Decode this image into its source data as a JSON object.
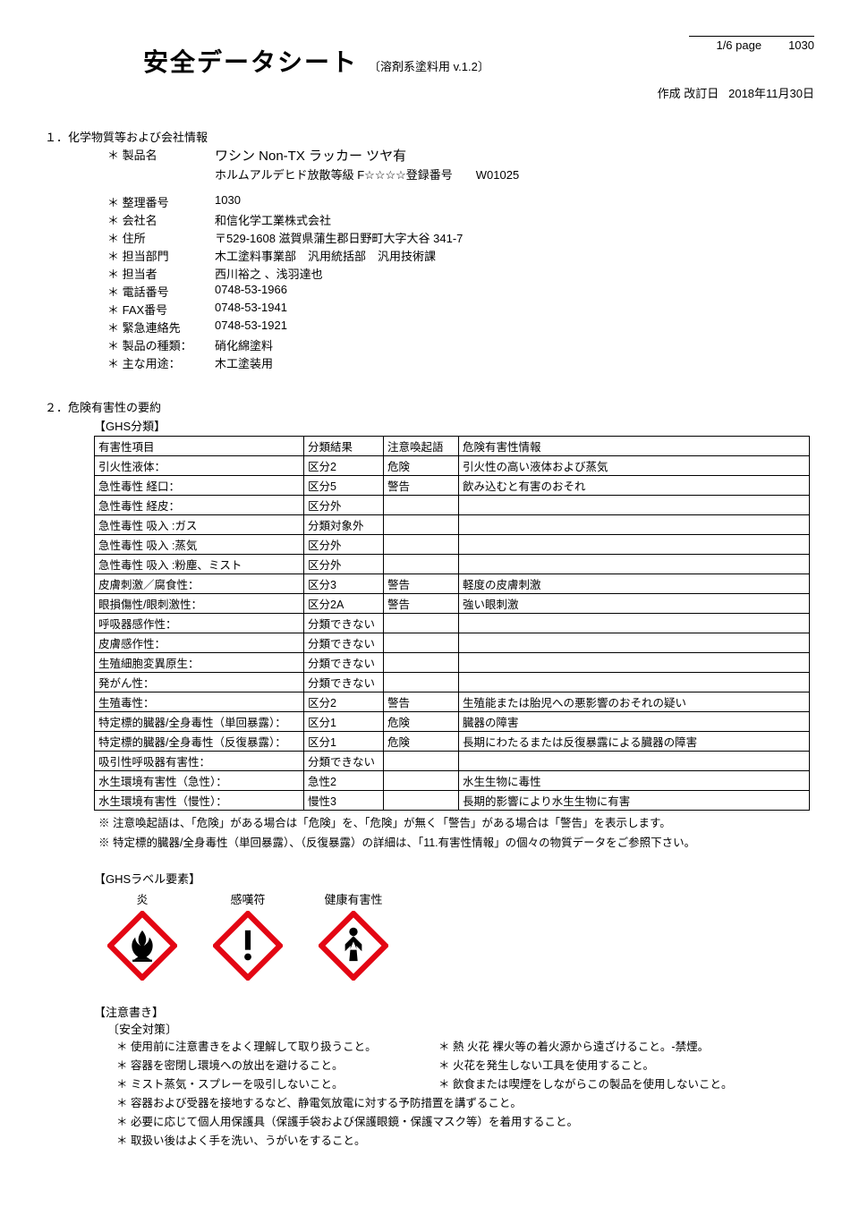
{
  "header": {
    "page": "1/6 page",
    "docnum": "1030",
    "title": "安全データシート",
    "subtitle": "〔溶剤系塗料用 v.1.2〕",
    "date_label": "作成 改訂日",
    "date": "2018年11月30日"
  },
  "section1": {
    "heading": "１．化学物質等および会社情報",
    "rows": [
      {
        "label": "＊ 製品名",
        "value": "ワシン Non-TX ラッカー ツヤ有"
      },
      {
        "label": "",
        "value": "ホルムアルデヒド放散等級 F☆☆☆☆登録番号　　W01025"
      },
      {
        "label": "＊ 整理番号",
        "value": "1030"
      },
      {
        "label": "＊ 会社名",
        "value": "和信化学工業株式会社"
      },
      {
        "label": "＊ 住所",
        "value": "〒529-1608 滋賀県蒲生郡日野町大字大谷 341-7"
      },
      {
        "label": "＊ 担当部門",
        "value": "木工塗料事業部　汎用統括部　汎用技術課"
      },
      {
        "label": "＊ 担当者",
        "value": "西川裕之 、浅羽達也"
      },
      {
        "label": "＊ 電話番号",
        "value": "0748-53-1966"
      },
      {
        "label": "＊ FAX番号",
        "value": "0748-53-1941"
      },
      {
        "label": "＊ 緊急連絡先",
        "value": "0748-53-1921"
      },
      {
        "label": "＊ 製品の種類：",
        "value": "硝化綿塗料"
      },
      {
        "label": "＊ 主な用途：",
        "value": "木工塗装用"
      }
    ]
  },
  "section2": {
    "heading": "２．危険有害性の要約",
    "ghs_heading": "【GHS分類】",
    "table_headers": [
      "有害性項目",
      "分類結果",
      "注意喚起語",
      "危険有害性情報"
    ],
    "rows": [
      [
        "引火性液体：",
        "区分2",
        "危険",
        "引火性の高い液体および蒸気"
      ],
      [
        "急性毒性 経口：",
        "区分5",
        "警告",
        "飲み込むと有害のおそれ"
      ],
      [
        "急性毒性 経皮：",
        "区分外",
        "",
        ""
      ],
      [
        "急性毒性 吸入 :ガス",
        "分類対象外",
        "",
        ""
      ],
      [
        "急性毒性 吸入 :蒸気",
        "区分外",
        "",
        ""
      ],
      [
        "急性毒性 吸入 :粉塵、ミスト",
        "区分外",
        "",
        ""
      ],
      [
        "皮膚刺激／腐食性：",
        "区分3",
        "警告",
        "軽度の皮膚刺激"
      ],
      [
        "眼損傷性/眼刺激性：",
        "区分2A",
        "警告",
        "強い眼刺激"
      ],
      [
        "呼吸器感作性：",
        "分類できない",
        "",
        ""
      ],
      [
        "皮膚感作性：",
        "分類できない",
        "",
        ""
      ],
      [
        "生殖細胞変異原生：",
        "分類できない",
        "",
        ""
      ],
      [
        "発がん性：",
        "分類できない",
        "",
        ""
      ],
      [
        "生殖毒性：",
        "区分2",
        "警告",
        "生殖能または胎児への悪影響のおそれの疑い"
      ],
      [
        "特定標的臓器/全身毒性（単回暴露）：",
        "区分1",
        "危険",
        "臓器の障害"
      ],
      [
        "特定標的臓器/全身毒性（反復暴露）：",
        "区分1",
        "危険",
        "長期にわたるまたは反復暴露による臓器の障害"
      ],
      [
        "吸引性呼吸器有害性：",
        "分類できない",
        "",
        ""
      ],
      [
        "水生環境有害性（急性）：",
        "急性2",
        "",
        "水生生物に毒性"
      ],
      [
        "水生環境有害性（慢性）：",
        "慢性3",
        "",
        "長期的影響により水生生物に有害"
      ]
    ],
    "notes": [
      "※ 注意喚起語は、「危険」がある場合は「危険」を、「危険」が無く「警告」がある場合は「警告」を表示します。",
      "※ 特定標的臓器/全身毒性（単回暴露）、（反復暴露）の詳細は、「11.有害性情報」の個々の物質データをご参照下さい。"
    ],
    "label_heading": "【GHSラベル要素】",
    "pictograms": [
      {
        "label": "炎",
        "type": "flame"
      },
      {
        "label": "感嘆符",
        "type": "exclaim"
      },
      {
        "label": "健康有害性",
        "type": "health"
      }
    ],
    "picto_colors": {
      "border": "#e30613",
      "fill": "#ffffff",
      "symbol": "#000000"
    },
    "caution_heading": "【注意書き】",
    "safety_heading": "〔安全対策〕",
    "bullets_pairs": [
      [
        "＊ 使用前に注意書きをよく理解して取り扱うこと。",
        "＊ 熱 火花 裸火等の着火源から遠ざけること。-禁煙。"
      ],
      [
        "＊ 容器を密閉し環境への放出を避けること。",
        "＊ 火花を発生しない工具を使用すること。"
      ],
      [
        "＊ ミスト蒸気・スプレーを吸引しないこと。",
        "＊ 飲食または喫煙をしながらこの製品を使用しないこと。"
      ]
    ],
    "bullets_full": [
      "＊ 容器および受器を接地するなど、静電気放電に対する予防措置を講ずること。",
      "＊ 必要に応じて個人用保護具（保護手袋および保護眼鏡・保護マスク等）を着用すること。",
      "＊ 取扱い後はよく手を洗い、うがいをすること。"
    ]
  }
}
